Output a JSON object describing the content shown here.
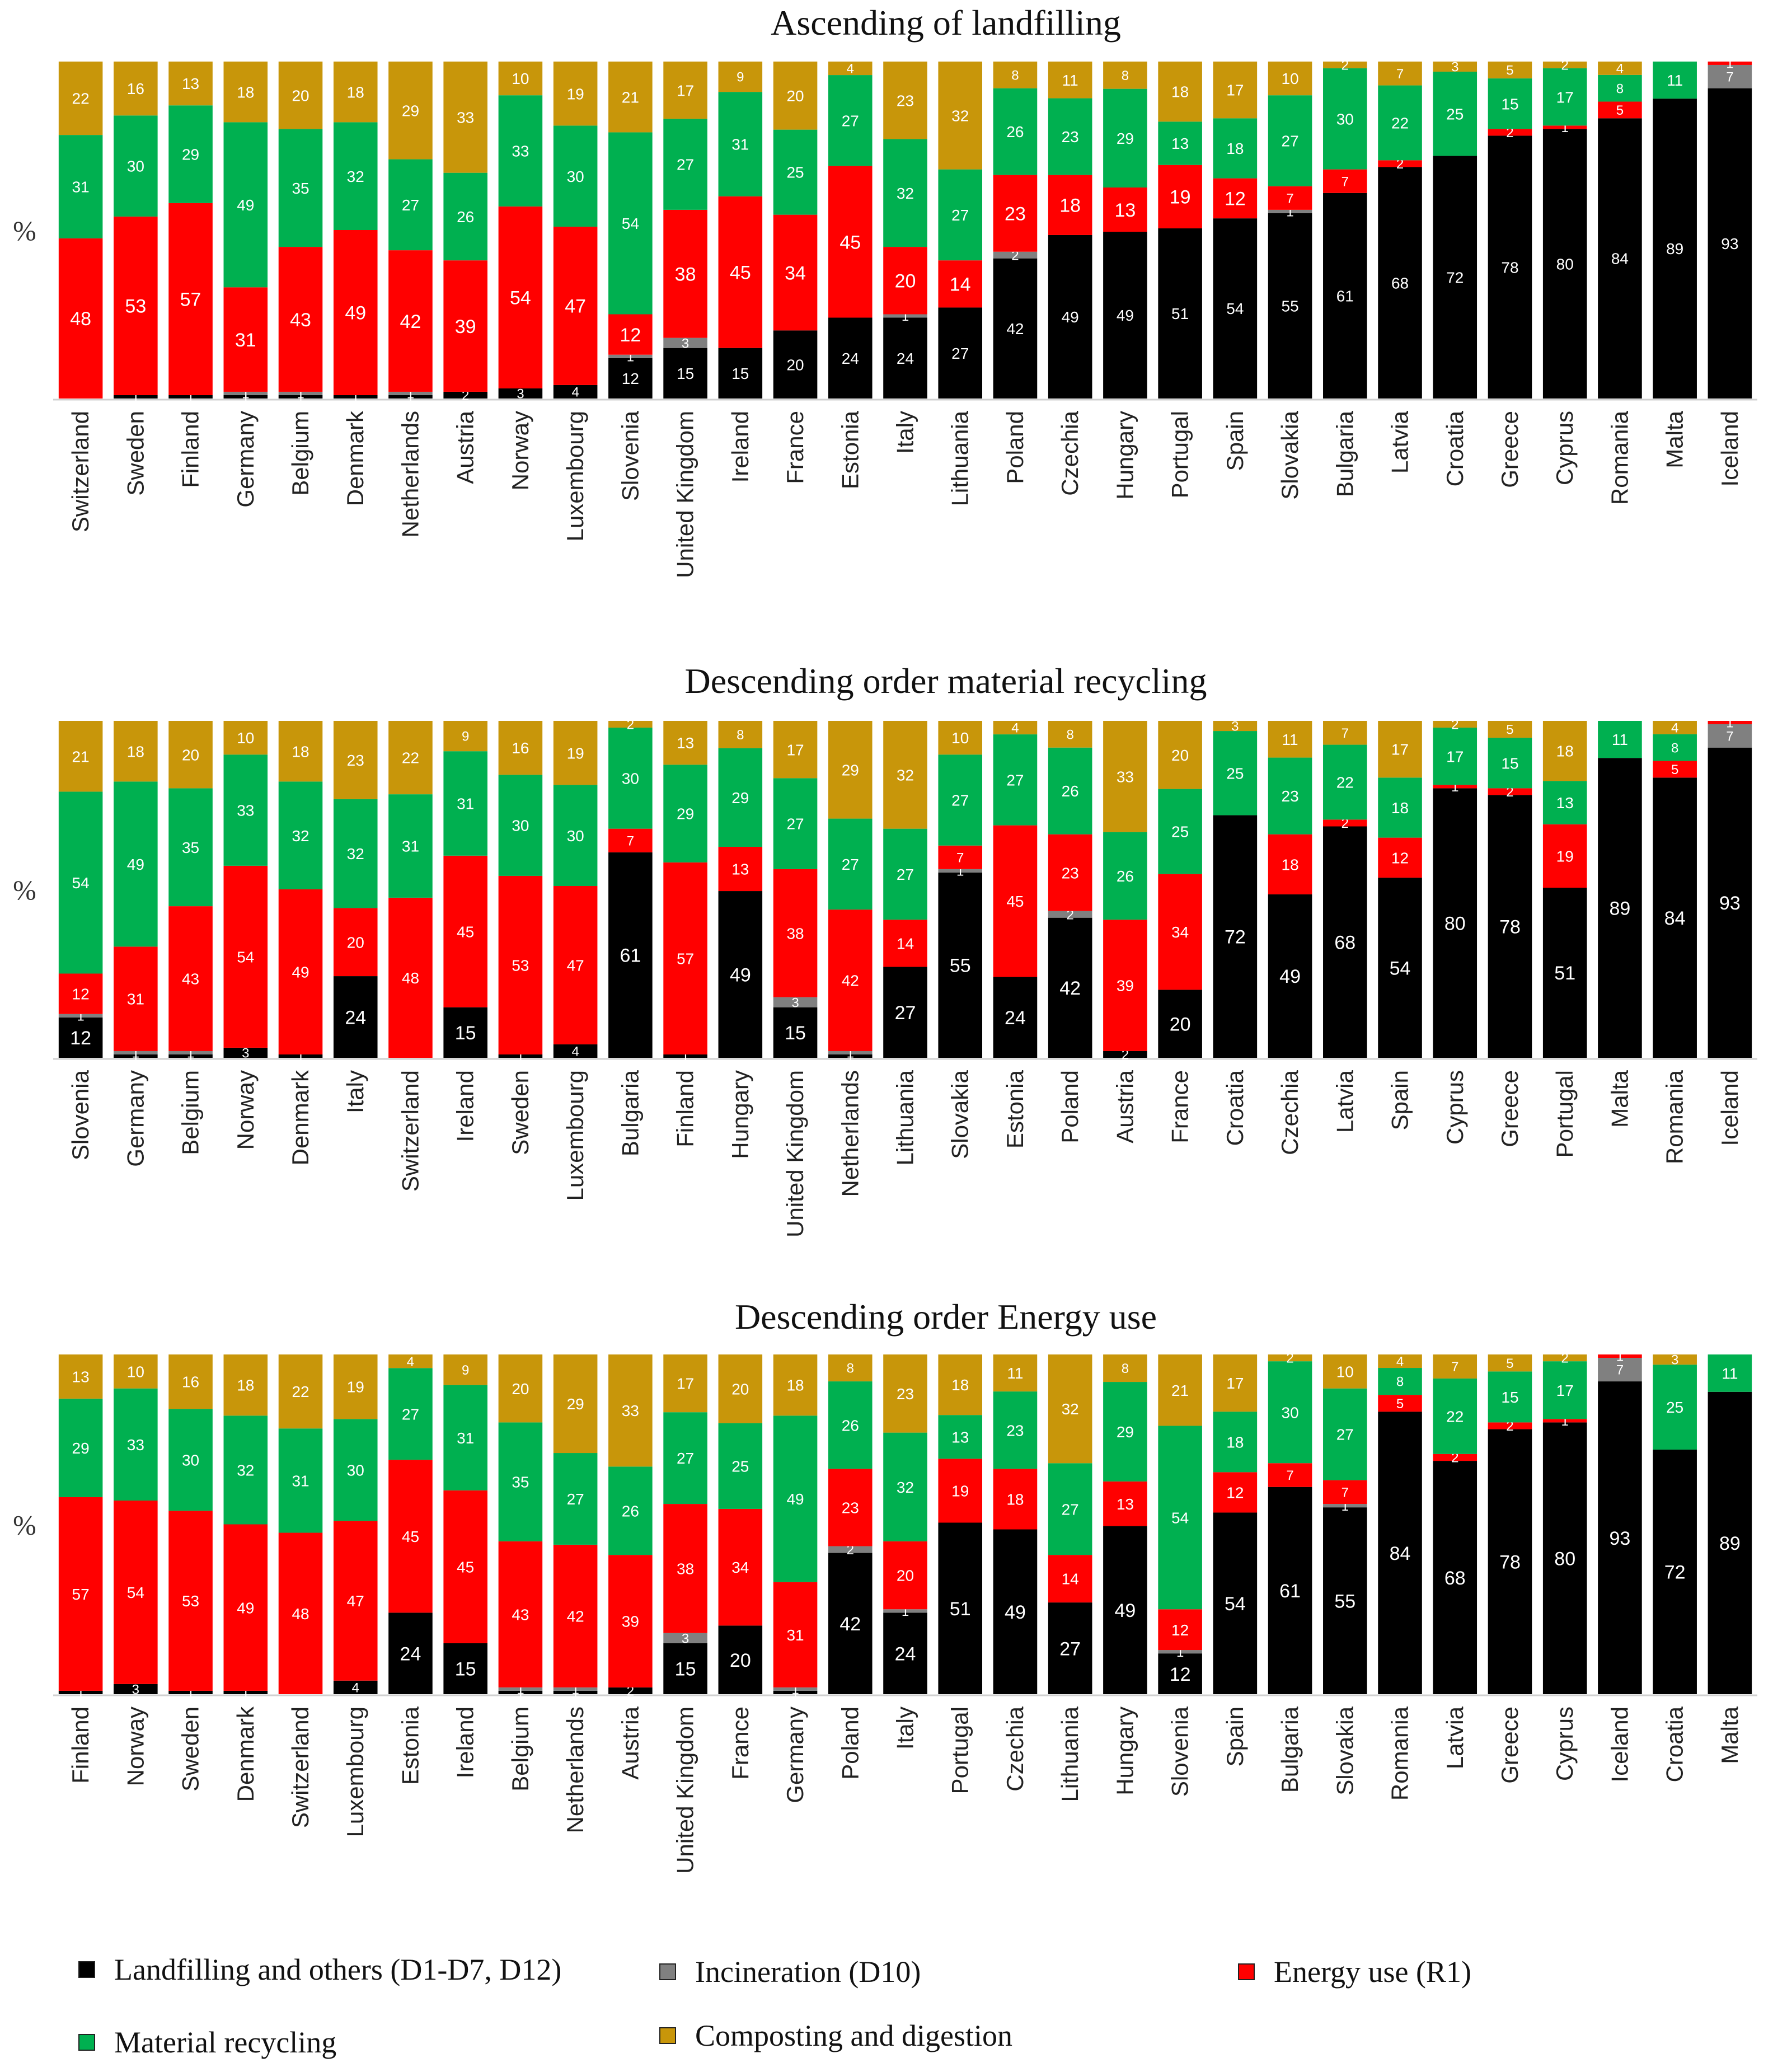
{
  "order": [
    "landfill",
    "incineration",
    "energy",
    "recycling",
    "composting"
  ],
  "colors": {
    "landfill": "#000000",
    "incineration": "#808080",
    "energy": "#ff0000",
    "recycling": "#00b050",
    "composting": "#c8960a"
  },
  "ylabel": "%",
  "legend": {
    "landfill": "Landfilling and others (D1-D7, D12)",
    "incineration": "Incineration (D10)",
    "energy": "Energy use (R1)",
    "recycling": "Material recycling",
    "composting": "Composting and digestion"
  },
  "chart_data": [
    {
      "type": "bar",
      "stacked": true,
      "title": "Ascending of landfilling",
      "ylabel": "%",
      "ylim": [
        0,
        100
      ],
      "categories": [
        "Switzerland",
        "Sweden",
        "Finland",
        "Germany",
        "Belgium",
        "Denmark",
        "Netherlands",
        "Austria",
        "Norway",
        "Luxembourg",
        "Slovenia",
        "United Kingdom",
        "Ireland",
        "France",
        "Estonia",
        "Italy",
        "Lithuania",
        "Poland",
        "Czechia",
        "Hungary",
        "Portugal",
        "Spain",
        "Slovakia",
        "Bulgaria",
        "Latvia",
        "Croatia",
        "Greece",
        "Cyprus",
        "Romania",
        "Malta",
        "Iceland"
      ],
      "series": [
        {
          "key": "landfill",
          "name": "Landfilling and others (D1-D7, D12)",
          "values": [
            0,
            1,
            1,
            1,
            1,
            1,
            1,
            2,
            3,
            4,
            12,
            15,
            15,
            20,
            24,
            24,
            27,
            42,
            49,
            49,
            51,
            54,
            55,
            61,
            68,
            72,
            78,
            80,
            84,
            89,
            93
          ]
        },
        {
          "key": "incineration",
          "name": "Incineration (D10)",
          "values": [
            0,
            0,
            0,
            1,
            1,
            0,
            1,
            0,
            0,
            0,
            1,
            3,
            0,
            0,
            0,
            1,
            0,
            2,
            0,
            0,
            0,
            0,
            1,
            0,
            0,
            0,
            0,
            0,
            0,
            0,
            7
          ]
        },
        {
          "key": "energy",
          "name": "Energy use (R1)",
          "values": [
            48,
            53,
            57,
            31,
            43,
            49,
            42,
            39,
            54,
            47,
            12,
            38,
            45,
            34,
            45,
            20,
            14,
            23,
            18,
            13,
            19,
            12,
            7,
            7,
            2,
            0,
            2,
            1,
            5,
            0,
            1
          ]
        },
        {
          "key": "recycling",
          "name": "Material recycling",
          "values": [
            31,
            30,
            29,
            49,
            35,
            32,
            27,
            26,
            33,
            30,
            54,
            27,
            31,
            25,
            27,
            32,
            27,
            26,
            23,
            29,
            13,
            18,
            27,
            30,
            22,
            25,
            15,
            17,
            8,
            11,
            0
          ]
        },
        {
          "key": "composting",
          "name": "Composting and digestion",
          "values": [
            22,
            16,
            13,
            18,
            20,
            18,
            29,
            33,
            10,
            19,
            21,
            17,
            9,
            20,
            4,
            23,
            32,
            8,
            11,
            8,
            18,
            17,
            10,
            2,
            7,
            3,
            5,
            2,
            4,
            0,
            0
          ]
        }
      ]
    },
    {
      "type": "bar",
      "stacked": true,
      "title": "Descending order material recycling",
      "ylabel": "%",
      "ylim": [
        0,
        100
      ],
      "categories": [
        "Slovenia",
        "Germany",
        "Belgium",
        "Norway",
        "Denmark",
        "Italy",
        "Switzerland",
        "Ireland",
        "Sweden",
        "Luxembourg",
        "Bulgaria",
        "Finland",
        "Hungary",
        "United Kingdom",
        "Netherlands",
        "Lithuania",
        "Slovakia",
        "Estonia",
        "Poland",
        "Austria",
        "France",
        "Croatia",
        "Czechia",
        "Latvia",
        "Spain",
        "Cyprus",
        "Greece",
        "Portugal",
        "Malta",
        "Romania",
        "Iceland"
      ],
      "series": [
        {
          "key": "landfill",
          "name": "Landfilling and others (D1-D7, D12)",
          "values": [
            12,
            1,
            1,
            3,
            1,
            24,
            0,
            15,
            1,
            4,
            61,
            1,
            49,
            15,
            1,
            27,
            55,
            24,
            42,
            2,
            20,
            72,
            49,
            68,
            54,
            80,
            78,
            51,
            89,
            84,
            93
          ]
        },
        {
          "key": "incineration",
          "name": "Incineration (D10)",
          "values": [
            1,
            1,
            1,
            0,
            0,
            0,
            0,
            0,
            0,
            0,
            0,
            0,
            0,
            3,
            1,
            0,
            1,
            0,
            2,
            0,
            0,
            0,
            0,
            0,
            0,
            0,
            0,
            0,
            0,
            0,
            7
          ]
        },
        {
          "key": "energy",
          "name": "Energy use (R1)",
          "values": [
            12,
            31,
            43,
            54,
            49,
            20,
            48,
            45,
            53,
            47,
            7,
            57,
            13,
            38,
            42,
            14,
            7,
            45,
            23,
            39,
            34,
            0,
            18,
            2,
            12,
            1,
            2,
            19,
            0,
            5,
            1
          ]
        },
        {
          "key": "recycling",
          "name": "Material recycling",
          "values": [
            54,
            49,
            35,
            33,
            32,
            32,
            31,
            31,
            30,
            30,
            30,
            29,
            29,
            27,
            27,
            27,
            27,
            27,
            26,
            26,
            25,
            25,
            23,
            22,
            18,
            17,
            15,
            13,
            11,
            8,
            0
          ]
        },
        {
          "key": "composting",
          "name": "Composting and digestion",
          "values": [
            21,
            18,
            20,
            10,
            18,
            23,
            22,
            9,
            16,
            19,
            2,
            13,
            8,
            17,
            29,
            32,
            10,
            4,
            8,
            33,
            20,
            3,
            11,
            7,
            17,
            2,
            5,
            18,
            0,
            4,
            0
          ]
        }
      ]
    },
    {
      "type": "bar",
      "stacked": true,
      "title": "Descending order Energy use",
      "ylabel": "%",
      "ylim": [
        0,
        100
      ],
      "categories": [
        "Finland",
        "Norway",
        "Sweden",
        "Denmark",
        "Switzerland",
        "Luxembourg",
        "Estonia",
        "Ireland",
        "Belgium",
        "Netherlands",
        "Austria",
        "United Kingdom",
        "France",
        "Germany",
        "Poland",
        "Italy",
        "Portugal",
        "Czechia",
        "Lithuania",
        "Hungary",
        "Slovenia",
        "Spain",
        "Bulgaria",
        "Slovakia",
        "Romania",
        "Latvia",
        "Greece",
        "Cyprus",
        "Iceland",
        "Croatia",
        "Malta"
      ],
      "series": [
        {
          "key": "landfill",
          "name": "Landfilling and others (D1-D7, D12)",
          "values": [
            1,
            3,
            1,
            1,
            0,
            4,
            24,
            15,
            1,
            1,
            2,
            15,
            20,
            1,
            42,
            24,
            51,
            49,
            27,
            49,
            12,
            54,
            61,
            55,
            84,
            68,
            78,
            80,
            93,
            72,
            89
          ]
        },
        {
          "key": "incineration",
          "name": "Incineration (D10)",
          "values": [
            0,
            0,
            0,
            0,
            0,
            0,
            0,
            0,
            1,
            1,
            0,
            3,
            0,
            1,
            2,
            1,
            0,
            0,
            0,
            0,
            1,
            0,
            0,
            1,
            0,
            0,
            0,
            0,
            7,
            0,
            0
          ]
        },
        {
          "key": "energy",
          "name": "Energy use (R1)",
          "values": [
            57,
            54,
            53,
            49,
            48,
            47,
            45,
            45,
            43,
            42,
            39,
            38,
            34,
            31,
            23,
            20,
            19,
            18,
            14,
            13,
            12,
            12,
            7,
            7,
            5,
            2,
            2,
            1,
            1,
            0,
            0
          ]
        },
        {
          "key": "recycling",
          "name": "Material recycling",
          "values": [
            29,
            33,
            30,
            32,
            31,
            30,
            27,
            31,
            35,
            27,
            26,
            27,
            25,
            49,
            26,
            32,
            13,
            23,
            27,
            29,
            54,
            18,
            30,
            27,
            8,
            22,
            15,
            17,
            0,
            25,
            11
          ]
        },
        {
          "key": "composting",
          "name": "Composting and digestion",
          "values": [
            13,
            10,
            16,
            18,
            22,
            19,
            4,
            9,
            20,
            29,
            33,
            17,
            20,
            18,
            8,
            23,
            18,
            11,
            32,
            8,
            21,
            17,
            2,
            10,
            4,
            7,
            5,
            2,
            0,
            3,
            0
          ]
        }
      ]
    }
  ]
}
